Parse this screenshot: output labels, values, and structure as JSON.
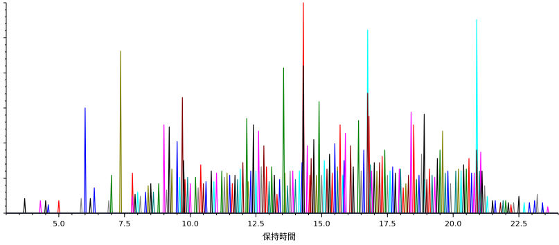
{
  "chart_data": {
    "type": "line",
    "title": "",
    "xlabel": "保持時間",
    "ylabel": "",
    "xlim": [
      3.0,
      24.0
    ],
    "ylim": [
      0,
      1.0
    ],
    "x_ticks": [
      "5.0",
      "7.5",
      "10.0",
      "12.5",
      "15.0",
      "17.5",
      "20.0",
      "22.5"
    ],
    "x_tick_values": [
      5.0,
      7.5,
      10.0,
      12.5,
      15.0,
      17.5,
      20.0,
      22.5
    ],
    "grid": false,
    "legend": "none",
    "colors": [
      "#ff0000",
      "#00ffff",
      "#808000",
      "#008000",
      "#0000ff",
      "#800000",
      "#ff00ff",
      "#000000",
      "#808080",
      "#008080"
    ],
    "series": [
      {
        "color": "#ff0000",
        "peaks": [
          [
            5.0,
            0.06
          ],
          [
            7.8,
            0.19
          ],
          [
            9.8,
            0.16
          ],
          [
            10.4,
            0.23
          ],
          [
            11.6,
            0.14
          ],
          [
            12.9,
            0.22
          ],
          [
            13.3,
            0.09
          ],
          [
            14.3,
            1.0
          ],
          [
            14.55,
            0.18
          ],
          [
            15.4,
            0.19
          ],
          [
            15.7,
            0.42
          ],
          [
            16.8,
            0.46
          ],
          [
            17.3,
            0.27
          ],
          [
            18.1,
            0.12
          ],
          [
            18.5,
            0.42
          ],
          [
            19.1,
            0.21
          ],
          [
            20.6,
            0.26
          ],
          [
            21.0,
            0.12
          ],
          [
            22.2,
            0.04
          ]
        ]
      },
      {
        "color": "#00ffff",
        "peaks": [
          [
            8.0,
            0.1
          ],
          [
            9.6,
            0.17
          ],
          [
            10.9,
            0.15
          ],
          [
            11.9,
            0.21
          ],
          [
            12.5,
            0.2
          ],
          [
            13.0,
            0.13
          ],
          [
            14.15,
            0.2
          ],
          [
            15.1,
            0.25
          ],
          [
            15.8,
            0.18
          ],
          [
            16.75,
            0.87
          ],
          [
            17.6,
            0.2
          ],
          [
            18.9,
            0.16
          ],
          [
            20.3,
            0.2
          ],
          [
            20.9,
            0.92
          ],
          [
            21.3,
            0.08
          ],
          [
            22.7,
            0.05
          ]
        ]
      },
      {
        "color": "#808000",
        "peaks": [
          [
            7.35,
            0.77
          ],
          [
            8.4,
            0.13
          ],
          [
            9.3,
            0.21
          ],
          [
            11.4,
            0.19
          ],
          [
            12.2,
            0.15
          ],
          [
            13.6,
            0.19
          ],
          [
            14.8,
            0.18
          ],
          [
            15.6,
            0.22
          ],
          [
            17.1,
            0.2
          ],
          [
            18.2,
            0.14
          ],
          [
            19.6,
            0.39
          ],
          [
            20.2,
            0.21
          ]
        ]
      },
      {
        "color": "#008000",
        "peaks": [
          [
            7.0,
            0.18
          ],
          [
            8.8,
            0.14
          ],
          [
            10.2,
            0.17
          ],
          [
            11.2,
            0.2
          ],
          [
            12.15,
            0.45
          ],
          [
            13.1,
            0.22
          ],
          [
            13.55,
            0.69
          ],
          [
            14.9,
            0.53
          ],
          [
            15.3,
            0.27
          ],
          [
            16.4,
            0.44
          ],
          [
            17.4,
            0.3
          ],
          [
            18.6,
            0.16
          ],
          [
            19.5,
            0.3
          ],
          [
            20.5,
            0.21
          ],
          [
            21.05,
            0.18
          ],
          [
            22.0,
            0.06
          ],
          [
            23.4,
            0.03
          ]
        ]
      },
      {
        "color": "#0000ff",
        "peaks": [
          [
            4.6,
            0.04
          ],
          [
            6.0,
            0.5
          ],
          [
            6.35,
            0.12
          ],
          [
            8.3,
            0.1
          ],
          [
            9.5,
            0.34
          ],
          [
            10.6,
            0.15
          ],
          [
            11.5,
            0.18
          ],
          [
            12.3,
            0.2
          ],
          [
            13.4,
            0.16
          ],
          [
            14.25,
            0.24
          ],
          [
            15.5,
            0.33
          ],
          [
            15.85,
            0.25
          ],
          [
            16.6,
            0.3
          ],
          [
            17.7,
            0.22
          ],
          [
            18.7,
            0.18
          ],
          [
            19.8,
            0.2
          ],
          [
            20.7,
            0.19
          ],
          [
            21.6,
            0.06
          ],
          [
            22.9,
            0.05
          ],
          [
            23.1,
            0.06
          ],
          [
            23.4,
            0.05
          ]
        ]
      },
      {
        "color": "#800000",
        "peaks": [
          [
            9.7,
            0.55
          ],
          [
            10.5,
            0.14
          ],
          [
            12.0,
            0.24
          ],
          [
            12.8,
            0.32
          ],
          [
            14.3,
            0.69
          ],
          [
            14.6,
            0.26
          ],
          [
            15.2,
            0.21
          ],
          [
            16.1,
            0.32
          ],
          [
            16.75,
            0.57
          ],
          [
            17.2,
            0.24
          ],
          [
            18.3,
            0.18
          ],
          [
            19.0,
            0.16
          ],
          [
            20.9,
            0.3
          ],
          [
            21.8,
            0.05
          ]
        ]
      },
      {
        "color": "#ff00ff",
        "peaks": [
          [
            4.3,
            0.06
          ],
          [
            7.8,
            0.08
          ],
          [
            9.0,
            0.42
          ],
          [
            10.0,
            0.14
          ],
          [
            11.0,
            0.19
          ],
          [
            12.6,
            0.39
          ],
          [
            13.9,
            0.2
          ],
          [
            14.45,
            0.32
          ],
          [
            15.9,
            0.38
          ],
          [
            16.9,
            0.2
          ],
          [
            17.95,
            0.21
          ],
          [
            18.4,
            0.48
          ],
          [
            19.3,
            0.17
          ],
          [
            20.8,
            0.19
          ],
          [
            21.05,
            0.29
          ],
          [
            23.6,
            0.03
          ]
        ]
      },
      {
        "color": "#000000",
        "peaks": [
          [
            3.7,
            0.07
          ],
          [
            4.5,
            0.06
          ],
          [
            6.2,
            0.07
          ],
          [
            7.9,
            0.09
          ],
          [
            8.5,
            0.14
          ],
          [
            9.2,
            0.41
          ],
          [
            9.75,
            0.25
          ],
          [
            10.8,
            0.2
          ],
          [
            11.7,
            0.18
          ],
          [
            12.4,
            0.42
          ],
          [
            13.2,
            0.18
          ],
          [
            14.3,
            0.7
          ],
          [
            14.7,
            0.35
          ],
          [
            15.3,
            0.28
          ],
          [
            16.2,
            0.22
          ],
          [
            17.0,
            0.24
          ],
          [
            17.8,
            0.19
          ],
          [
            18.9,
            0.47
          ],
          [
            19.4,
            0.26
          ],
          [
            20.4,
            0.23
          ],
          [
            21.1,
            0.2
          ],
          [
            21.5,
            0.06
          ],
          [
            22.1,
            0.05
          ],
          [
            22.5,
            0.08
          ]
        ]
      },
      {
        "color": "#808080",
        "peaks": [
          [
            5.85,
            0.07
          ],
          [
            6.9,
            0.06
          ],
          [
            8.1,
            0.08
          ],
          [
            9.1,
            0.11
          ],
          [
            10.3,
            0.12
          ],
          [
            11.3,
            0.17
          ],
          [
            12.7,
            0.22
          ],
          [
            13.8,
            0.2
          ],
          [
            15.0,
            0.18
          ],
          [
            16.5,
            0.2
          ],
          [
            17.5,
            0.18
          ],
          [
            18.8,
            0.28
          ],
          [
            19.9,
            0.14
          ],
          [
            21.2,
            0.13
          ],
          [
            22.3,
            0.05
          ],
          [
            23.2,
            0.09
          ]
        ]
      },
      {
        "color": "#008080",
        "peaks": [
          [
            8.6,
            0.1
          ],
          [
            9.9,
            0.17
          ],
          [
            11.8,
            0.16
          ],
          [
            13.0,
            0.15
          ],
          [
            13.7,
            0.13
          ],
          [
            14.0,
            0.16
          ],
          [
            15.6,
            0.2
          ],
          [
            16.85,
            0.23
          ],
          [
            18.0,
            0.21
          ],
          [
            19.2,
            0.18
          ],
          [
            19.7,
            0.19
          ],
          [
            20.1,
            0.2
          ],
          [
            21.0,
            0.2
          ],
          [
            21.9,
            0.06
          ]
        ]
      }
    ]
  }
}
